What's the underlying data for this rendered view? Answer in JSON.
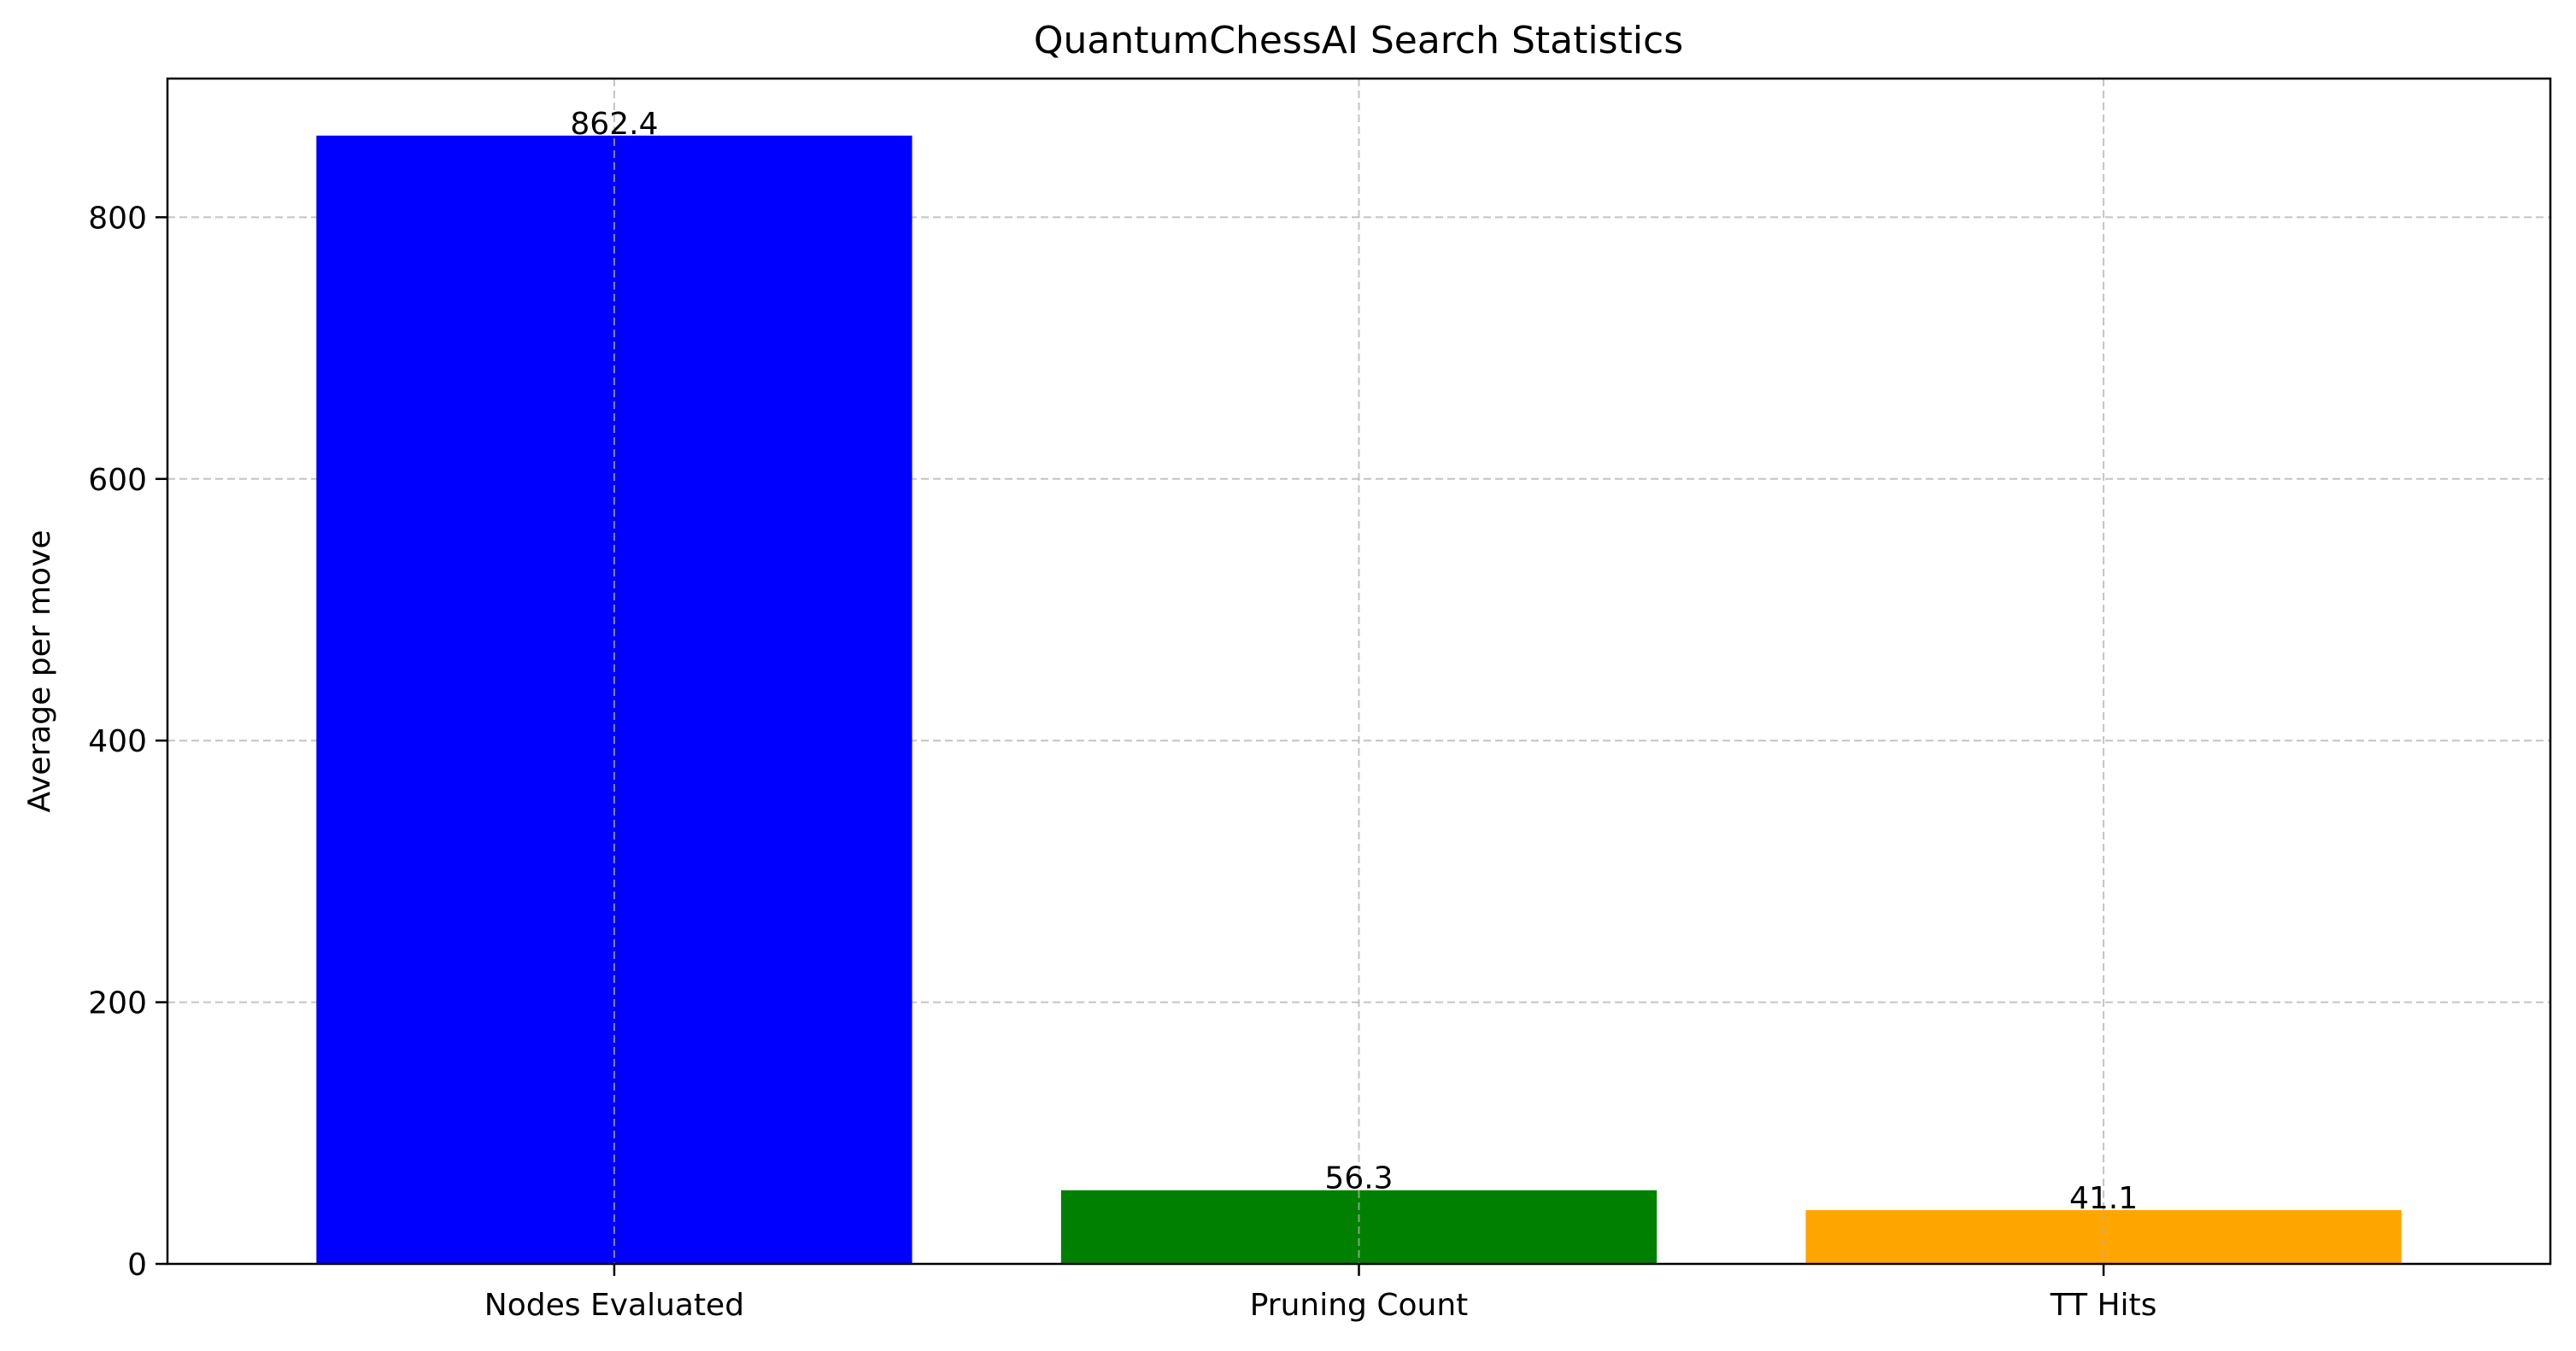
{
  "chart_data": {
    "type": "bar",
    "title": "QuantumChessAI Search Statistics",
    "xlabel": "",
    "ylabel": "Average per move",
    "categories": [
      "Nodes Evaluated",
      "Pruning Count",
      "TT Hits"
    ],
    "values": [
      862.4,
      56.3,
      41.1
    ],
    "value_labels": [
      "862.4",
      "56.3",
      "41.1"
    ],
    "bar_colors": [
      "#0000ff",
      "#008000",
      "#ffa500"
    ],
    "ylim": [
      0,
      906
    ],
    "yticks": [
      0,
      200,
      400,
      600,
      800
    ],
    "ytick_labels": [
      "0",
      "200",
      "400",
      "600",
      "800"
    ],
    "grid": true,
    "legend": "none"
  }
}
